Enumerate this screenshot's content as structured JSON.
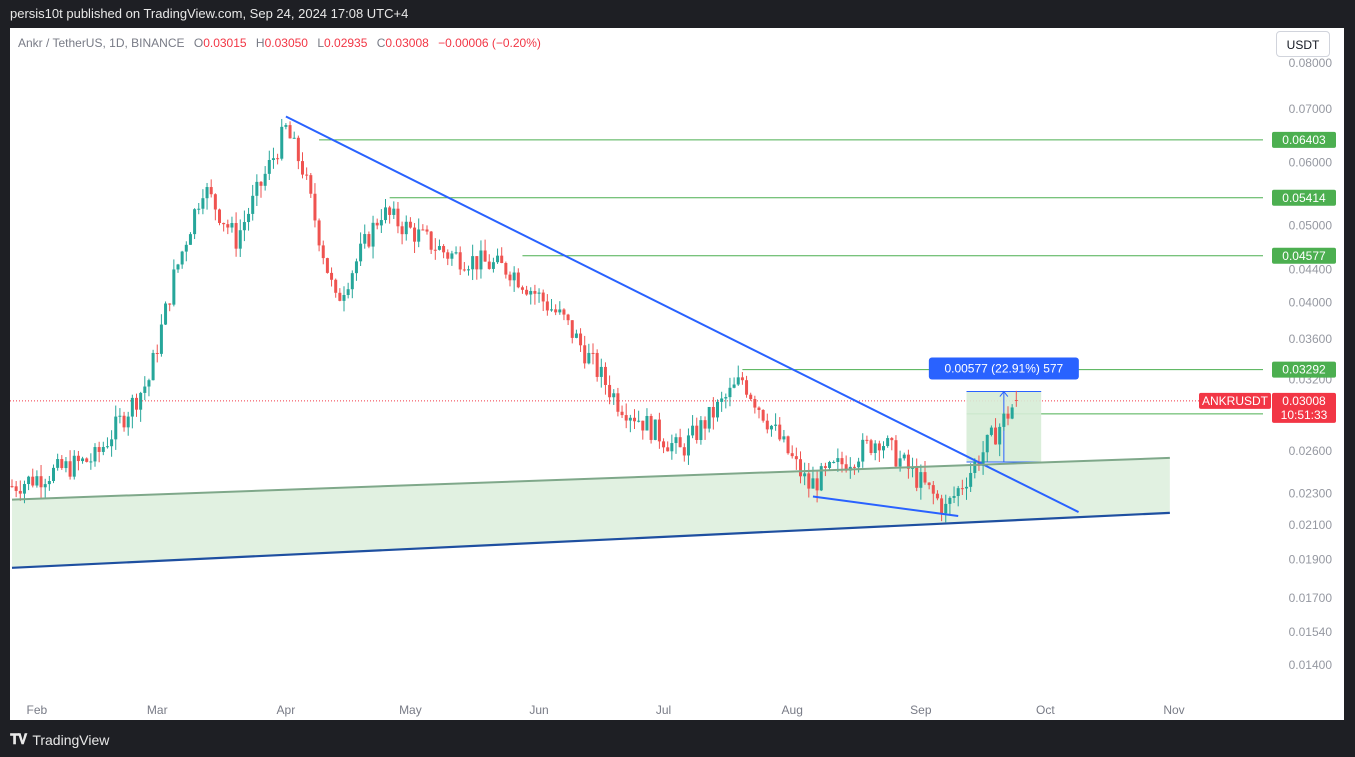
{
  "header": {
    "published": "persis10t published on TradingView.com, Sep 24, 2024 17:08 UTC+4"
  },
  "legend": {
    "symbol": "Ankr / TetherUS, 1D, BINANCE",
    "o_label": "O",
    "o_value": "0.03015",
    "h_label": "H",
    "h_value": "0.03050",
    "l_label": "L",
    "l_value": "0.02935",
    "c_label": "C",
    "c_value": "0.03008",
    "change": "−0.00006 (−0.20%)"
  },
  "currency_button": "USDT",
  "footer": {
    "brand": "TradingView"
  },
  "colors": {
    "up": "#26a69a",
    "down": "#ef5350",
    "trendline": "#2962ff",
    "support_line": "#1e4fa0",
    "channel_fill": "#dcefdc",
    "level_line": "#4caf50",
    "label_green": "#4caf50",
    "label_red": "#f23645",
    "measure_blue": "#2962ff"
  },
  "chart_data": {
    "type": "candlestick",
    "symbol_tag": "ANKRUSDT",
    "last_price": "0.03008",
    "countdown": "10:51:33",
    "y_scale": "log",
    "ylim": [
      0.0128,
      0.0885
    ],
    "x_start": "2024-01-26",
    "x_tick_labels": [
      {
        "label": "Feb",
        "date": "2024-02-01"
      },
      {
        "label": "Mar",
        "date": "2024-03-01"
      },
      {
        "label": "Apr",
        "date": "2024-04-01"
      },
      {
        "label": "May",
        "date": "2024-05-01"
      },
      {
        "label": "Jun",
        "date": "2024-06-01"
      },
      {
        "label": "Jul",
        "date": "2024-07-01"
      },
      {
        "label": "Aug",
        "date": "2024-08-01"
      },
      {
        "label": "Sep",
        "date": "2024-09-01"
      },
      {
        "label": "Oct",
        "date": "2024-10-01"
      },
      {
        "label": "Nov",
        "date": "2024-11-01"
      }
    ],
    "y_tick_labels": [
      "0.08000",
      "0.07000",
      "0.06000",
      "0.05000",
      "0.04400",
      "0.04000",
      "0.03600",
      "0.03200",
      "0.02600",
      "0.02300",
      "0.02100",
      "0.01900",
      "0.01700",
      "0.01540",
      "0.01400"
    ],
    "horizontal_levels": [
      {
        "label": "0.06403",
        "value": 0.06403,
        "x_start": "2024-04-09"
      },
      {
        "label": "0.05414",
        "value": 0.05414,
        "x_start": "2024-04-26"
      },
      {
        "label": "0.04577",
        "value": 0.04577,
        "x_start": "2024-05-28"
      },
      {
        "label": "0.03292",
        "value": 0.03292,
        "x_start": "2024-07-20"
      },
      {
        "label": "0.02896",
        "value": 0.02896,
        "x_start": "2024-09-12"
      }
    ],
    "trendlines": [
      {
        "name": "descending-resistance",
        "from": [
          "2024-04-01",
          0.0685
        ],
        "to": [
          "2024-10-09",
          0.0218
        ]
      },
      {
        "name": "channel-top",
        "from": [
          "2024-01-26",
          0.0226
        ],
        "to": [
          "2024-10-31",
          0.0255
        ]
      },
      {
        "name": "channel-bottom",
        "from": [
          "2024-01-26",
          0.01855
        ],
        "to": [
          "2024-10-31",
          0.02175
        ]
      },
      {
        "name": "wedge-base",
        "from": [
          "2024-08-06",
          0.0228
        ],
        "to": [
          "2024-09-10",
          0.02155
        ]
      }
    ],
    "measure": {
      "label": "0.00577 (22.91%) 577",
      "from_date": "2024-09-12",
      "to_date": "2024-09-30",
      "low": 0.0252,
      "high": 0.0309
    },
    "candles_summary": [
      {
        "date": "2024-01-26",
        "close": 0.0235
      },
      {
        "date": "2024-02-15",
        "close": 0.0255
      },
      {
        "date": "2024-02-28",
        "close": 0.032
      },
      {
        "date": "2024-03-05",
        "close": 0.043
      },
      {
        "date": "2024-03-12",
        "close": 0.056
      },
      {
        "date": "2024-03-20",
        "close": 0.048
      },
      {
        "date": "2024-04-01",
        "close": 0.066
      },
      {
        "date": "2024-04-05",
        "close": 0.059
      },
      {
        "date": "2024-04-13",
        "close": 0.04
      },
      {
        "date": "2024-04-24",
        "close": 0.052
      },
      {
        "date": "2024-05-10",
        "close": 0.046
      },
      {
        "date": "2024-05-25",
        "close": 0.044
      },
      {
        "date": "2024-06-07",
        "close": 0.038
      },
      {
        "date": "2024-06-20",
        "close": 0.03
      },
      {
        "date": "2024-07-05",
        "close": 0.026
      },
      {
        "date": "2024-07-20",
        "close": 0.032
      },
      {
        "date": "2024-08-05",
        "close": 0.0235
      },
      {
        "date": "2024-08-22",
        "close": 0.027
      },
      {
        "date": "2024-09-07",
        "close": 0.022
      },
      {
        "date": "2024-09-15",
        "close": 0.0255
      },
      {
        "date": "2024-09-24",
        "close": 0.03008
      }
    ]
  }
}
